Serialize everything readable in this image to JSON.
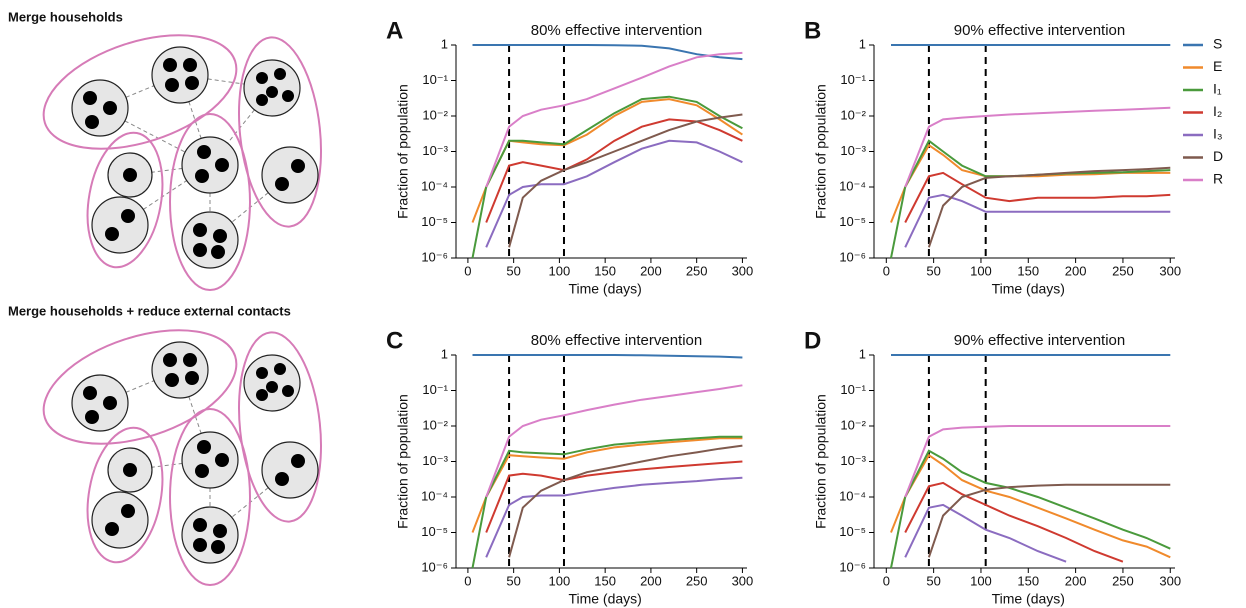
{
  "diagrams": [
    {
      "label": "Merge households"
    },
    {
      "label": "Merge households + reduce external contacts"
    }
  ],
  "chart_data": [
    {
      "type": "line",
      "panel": "A",
      "title": "80% effective intervention",
      "xlabel": "Time (days)",
      "ylabel": "Fraction of population",
      "log_y": true,
      "interventions": [
        45,
        105
      ],
      "x": [
        5,
        20,
        45,
        60,
        80,
        105,
        130,
        160,
        190,
        220,
        250,
        275,
        300
      ],
      "xlim": [
        -13,
        305
      ],
      "xticks": [
        0,
        50,
        100,
        150,
        200,
        250,
        300
      ],
      "ylim": [
        1e-06,
        1
      ],
      "yticks": [
        {
          "value": 1e-06,
          "label": "10⁻⁶"
        },
        {
          "value": 1e-05,
          "label": "10⁻⁵"
        },
        {
          "value": 0.0001,
          "label": "10⁻⁴"
        },
        {
          "value": 0.001,
          "label": "10⁻³"
        },
        {
          "value": 0.01,
          "label": "10⁻²"
        },
        {
          "value": 0.1,
          "label": "10⁻¹"
        },
        1
      ],
      "series": [
        {
          "name": "S",
          "color": "#3a75b0",
          "values": [
            1,
            1,
            1,
            1,
            1,
            1,
            1,
            0.99,
            0.95,
            0.8,
            0.55,
            0.45,
            0.4
          ]
        },
        {
          "name": "E",
          "color": "#f08a2c",
          "values": [
            1e-05,
            0.0001,
            0.002,
            0.0018,
            0.0016,
            0.0015,
            0.003,
            0.01,
            0.025,
            0.03,
            0.02,
            0.008,
            0.003
          ]
        },
        {
          "name": "I₁",
          "color": "#4a9a3c",
          "values": [
            1e-06,
            0.0001,
            0.002,
            0.002,
            0.0018,
            0.0016,
            0.004,
            0.012,
            0.03,
            0.035,
            0.025,
            0.01,
            0.0045
          ]
        },
        {
          "name": "I₂",
          "color": "#cf3a30",
          "values": [
            null,
            1e-05,
            0.0004,
            0.0005,
            0.0004,
            0.0003,
            0.0006,
            0.002,
            0.005,
            0.008,
            0.007,
            0.004,
            0.002
          ]
        },
        {
          "name": "I₃",
          "color": "#8b6cc0",
          "values": [
            null,
            2e-06,
            6e-05,
            0.0001,
            0.00012,
            0.00012,
            0.0002,
            0.0005,
            0.0012,
            0.002,
            0.0018,
            0.001,
            0.0005
          ]
        },
        {
          "name": "D",
          "color": "#7f5a4e",
          "values": [
            null,
            null,
            2e-06,
            5e-05,
            0.00015,
            0.0003,
            0.0005,
            0.001,
            0.002,
            0.004,
            0.007,
            0.009,
            0.011
          ]
        },
        {
          "name": "R",
          "color": "#d97fc8",
          "values": [
            null,
            0.0001,
            0.005,
            0.01,
            0.015,
            0.02,
            0.03,
            0.06,
            0.12,
            0.25,
            0.45,
            0.55,
            0.6
          ]
        }
      ]
    },
    {
      "type": "line",
      "panel": "B",
      "title": "90% effective intervention",
      "xlabel": "Time (days)",
      "ylabel": "Fraction of population",
      "log_y": true,
      "interventions": [
        45,
        105
      ],
      "legend": "right",
      "x": [
        5,
        20,
        45,
        60,
        80,
        105,
        130,
        160,
        190,
        220,
        250,
        275,
        300
      ],
      "xlim": [
        -13,
        305
      ],
      "xticks": [
        0,
        50,
        100,
        150,
        200,
        250,
        300
      ],
      "ylim": [
        1e-06,
        1
      ],
      "yticks": [
        {
          "value": 1e-06,
          "label": "10⁻⁶"
        },
        {
          "value": 1e-05,
          "label": "10⁻⁵"
        },
        {
          "value": 0.0001,
          "label": "10⁻⁴"
        },
        {
          "value": 0.001,
          "label": "10⁻³"
        },
        {
          "value": 0.01,
          "label": "10⁻²"
        },
        {
          "value": 0.1,
          "label": "10⁻¹"
        },
        1
      ],
      "series": [
        {
          "name": "S",
          "color": "#3a75b0",
          "values": [
            1,
            1,
            1,
            1,
            1,
            1,
            1,
            1,
            1,
            1,
            1,
            1,
            1
          ]
        },
        {
          "name": "E",
          "color": "#f08a2c",
          "values": [
            1e-05,
            0.0001,
            0.0015,
            0.0008,
            0.0003,
            0.0002,
            0.0002,
            0.0002,
            0.00022,
            0.00023,
            0.00025,
            0.00025,
            0.00025
          ]
        },
        {
          "name": "I₁",
          "color": "#4a9a3c",
          "values": [
            1e-06,
            0.0001,
            0.002,
            0.001,
            0.0004,
            0.0002,
            0.0002,
            0.00022,
            0.00024,
            0.00025,
            0.00026,
            0.00028,
            0.0003
          ]
        },
        {
          "name": "I₂",
          "color": "#cf3a30",
          "values": [
            null,
            1e-05,
            0.0002,
            0.00025,
            0.00012,
            5e-05,
            4e-05,
            5e-05,
            5e-05,
            5e-05,
            5.5e-05,
            5.5e-05,
            6e-05
          ]
        },
        {
          "name": "I₃",
          "color": "#8b6cc0",
          "values": [
            null,
            2e-06,
            5e-05,
            6e-05,
            4e-05,
            2e-05,
            2e-05,
            2e-05,
            2e-05,
            2e-05,
            2e-05,
            2e-05,
            2e-05
          ]
        },
        {
          "name": "D",
          "color": "#7f5a4e",
          "values": [
            null,
            null,
            2e-06,
            3e-05,
            0.0001,
            0.00018,
            0.0002,
            0.00022,
            0.00025,
            0.00028,
            0.0003,
            0.00032,
            0.00035
          ]
        },
        {
          "name": "R",
          "color": "#d97fc8",
          "values": [
            null,
            0.0001,
            0.005,
            0.008,
            0.009,
            0.01,
            0.011,
            0.012,
            0.013,
            0.014,
            0.015,
            0.016,
            0.017
          ]
        }
      ]
    },
    {
      "type": "line",
      "panel": "C",
      "title": "80% effective intervention",
      "xlabel": "Time (days)",
      "ylabel": "Fraction of population",
      "log_y": true,
      "interventions": [
        45,
        105
      ],
      "x": [
        5,
        20,
        45,
        60,
        80,
        105,
        130,
        160,
        190,
        220,
        250,
        275,
        300
      ],
      "xlim": [
        -13,
        305
      ],
      "xticks": [
        0,
        50,
        100,
        150,
        200,
        250,
        300
      ],
      "ylim": [
        1e-06,
        1
      ],
      "yticks": [
        {
          "value": 1e-06,
          "label": "10⁻⁶"
        },
        {
          "value": 1e-05,
          "label": "10⁻⁵"
        },
        {
          "value": 0.0001,
          "label": "10⁻⁴"
        },
        {
          "value": 0.001,
          "label": "10⁻³"
        },
        {
          "value": 0.01,
          "label": "10⁻²"
        },
        {
          "value": 0.1,
          "label": "10⁻¹"
        },
        1
      ],
      "series": [
        {
          "name": "S",
          "color": "#3a75b0",
          "values": [
            1,
            1,
            1,
            1,
            1,
            1,
            1,
            1,
            0.98,
            0.95,
            0.92,
            0.9,
            0.85
          ]
        },
        {
          "name": "E",
          "color": "#f08a2c",
          "values": [
            1e-05,
            0.0001,
            0.0015,
            0.0014,
            0.0013,
            0.0012,
            0.0018,
            0.0025,
            0.003,
            0.0035,
            0.004,
            0.0045,
            0.0045
          ]
        },
        {
          "name": "I₁",
          "color": "#4a9a3c",
          "values": [
            1e-06,
            0.0001,
            0.002,
            0.0018,
            0.0017,
            0.0016,
            0.0022,
            0.003,
            0.0035,
            0.004,
            0.0045,
            0.005,
            0.005
          ]
        },
        {
          "name": "I₂",
          "color": "#cf3a30",
          "values": [
            null,
            1e-05,
            0.0004,
            0.00045,
            0.0004,
            0.0003,
            0.0004,
            0.0005,
            0.0006,
            0.0007,
            0.0008,
            0.0009,
            0.001
          ]
        },
        {
          "name": "I₃",
          "color": "#8b6cc0",
          "values": [
            null,
            2e-06,
            6e-05,
            0.0001,
            0.00011,
            0.00011,
            0.00014,
            0.00018,
            0.00022,
            0.00025,
            0.00028,
            0.00032,
            0.00035
          ]
        },
        {
          "name": "D",
          "color": "#7f5a4e",
          "values": [
            null,
            null,
            2e-06,
            5e-05,
            0.00015,
            0.0003,
            0.0005,
            0.0007,
            0.001,
            0.0014,
            0.0018,
            0.0023,
            0.0028
          ]
        },
        {
          "name": "R",
          "color": "#d97fc8",
          "values": [
            null,
            0.0001,
            0.005,
            0.01,
            0.015,
            0.02,
            0.028,
            0.04,
            0.055,
            0.07,
            0.09,
            0.11,
            0.14
          ]
        }
      ]
    },
    {
      "type": "line",
      "panel": "D",
      "title": "90% effective intervention",
      "xlabel": "Time (days)",
      "ylabel": "Fraction of population",
      "log_y": true,
      "interventions": [
        45,
        105
      ],
      "x": [
        5,
        20,
        45,
        60,
        80,
        105,
        130,
        160,
        190,
        220,
        250,
        275,
        300
      ],
      "xlim": [
        -13,
        305
      ],
      "xticks": [
        0,
        50,
        100,
        150,
        200,
        250,
        300
      ],
      "ylim": [
        1e-06,
        1
      ],
      "yticks": [
        {
          "value": 1e-06,
          "label": "10⁻⁶"
        },
        {
          "value": 1e-05,
          "label": "10⁻⁵"
        },
        {
          "value": 0.0001,
          "label": "10⁻⁴"
        },
        {
          "value": 0.001,
          "label": "10⁻³"
        },
        {
          "value": 0.01,
          "label": "10⁻²"
        },
        {
          "value": 0.1,
          "label": "10⁻¹"
        },
        1
      ],
      "series": [
        {
          "name": "S",
          "color": "#3a75b0",
          "values": [
            1,
            1,
            1,
            1,
            1,
            1,
            1,
            1,
            1,
            1,
            1,
            1,
            1
          ]
        },
        {
          "name": "E",
          "color": "#f08a2c",
          "values": [
            1e-05,
            0.0001,
            0.0015,
            0.0008,
            0.0003,
            0.00015,
            0.0001,
            5e-05,
            2.5e-05,
            1.2e-05,
            6e-06,
            4e-06,
            2e-06
          ]
        },
        {
          "name": "I₁",
          "color": "#4a9a3c",
          "values": [
            1e-06,
            0.0001,
            0.002,
            0.0012,
            0.0005,
            0.00025,
            0.00018,
            0.0001,
            5e-05,
            2.5e-05,
            1.2e-05,
            7e-06,
            3.5e-06
          ]
        },
        {
          "name": "I₂",
          "color": "#cf3a30",
          "values": [
            null,
            1e-05,
            0.0002,
            0.00025,
            0.00012,
            6e-05,
            3e-05,
            1.5e-05,
            7e-06,
            3e-06,
            1.5e-06,
            null,
            null
          ]
        },
        {
          "name": "I₃",
          "color": "#8b6cc0",
          "values": [
            null,
            2e-06,
            5e-05,
            6e-05,
            3e-05,
            1.2e-05,
            7e-06,
            3e-06,
            1.5e-06,
            null,
            null,
            null,
            null
          ]
        },
        {
          "name": "D",
          "color": "#7f5a4e",
          "values": [
            null,
            null,
            2e-06,
            3e-05,
            0.0001,
            0.00016,
            0.00019,
            0.00021,
            0.00022,
            0.00022,
            0.00022,
            0.00022,
            0.00022
          ]
        },
        {
          "name": "R",
          "color": "#d97fc8",
          "values": [
            null,
            0.0001,
            0.005,
            0.008,
            0.009,
            0.0095,
            0.01,
            0.01,
            0.01,
            0.01,
            0.01,
            0.01,
            0.01
          ]
        }
      ]
    }
  ]
}
